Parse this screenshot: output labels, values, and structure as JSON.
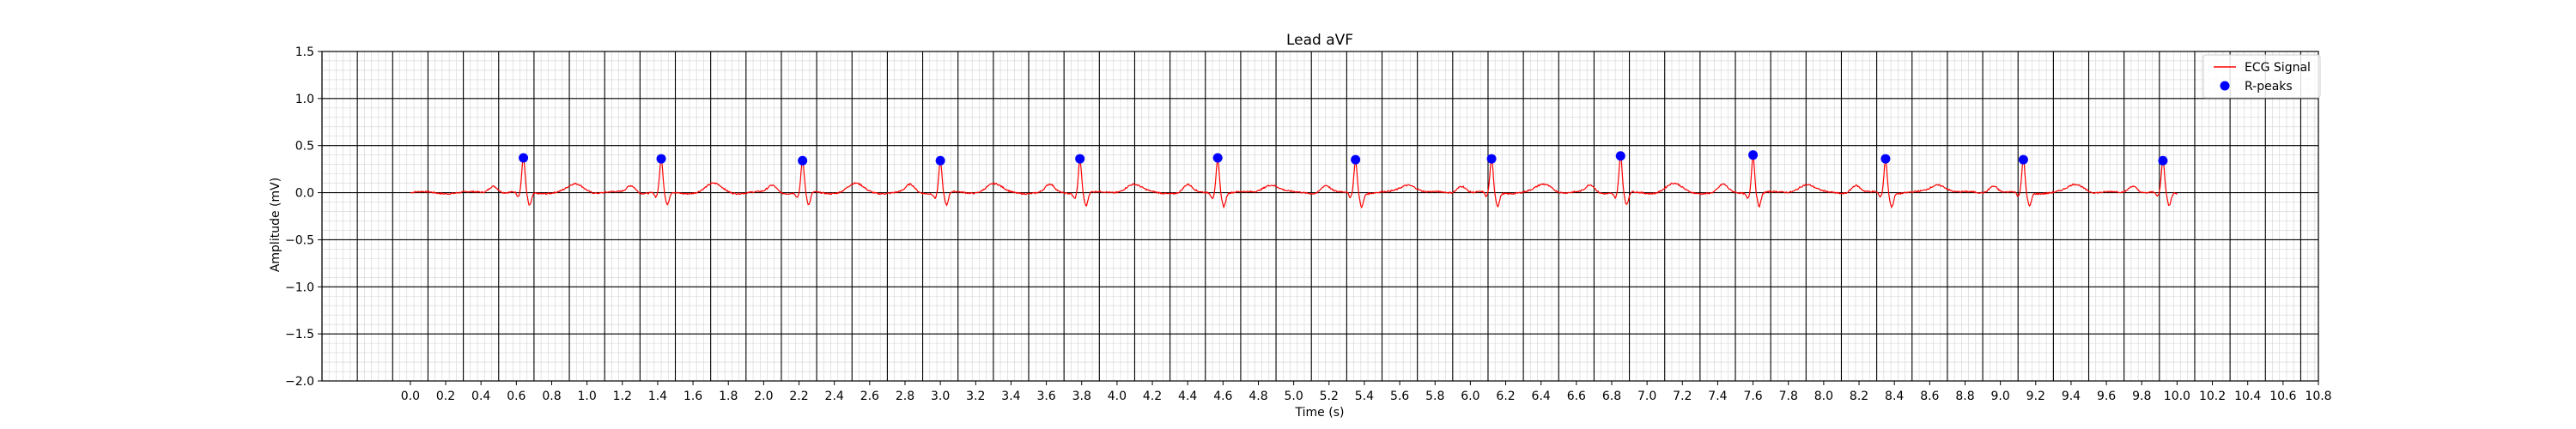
{
  "chart_data": {
    "type": "line",
    "title": "Lead aVF",
    "xlabel": "Time (s)",
    "ylabel": "Amplitude (mV)",
    "xlim": [
      -0.5,
      10.8
    ],
    "ylim": [
      -2.0,
      1.5
    ],
    "x_ticks": [
      "0.0",
      "0.2",
      "0.4",
      "0.6",
      "0.8",
      "1.0",
      "1.2",
      "1.4",
      "1.6",
      "1.8",
      "2.0",
      "2.2",
      "2.4",
      "2.6",
      "2.8",
      "3.0",
      "3.2",
      "3.4",
      "3.6",
      "3.8",
      "4.0",
      "4.2",
      "4.4",
      "4.6",
      "4.8",
      "5.0",
      "5.2",
      "5.4",
      "5.6",
      "5.8",
      "6.0",
      "6.2",
      "6.4",
      "6.6",
      "6.8",
      "7.0",
      "7.2",
      "7.4",
      "7.6",
      "7.8",
      "8.0",
      "8.2",
      "8.4",
      "8.6",
      "8.8",
      "9.0",
      "9.2",
      "9.4",
      "9.6",
      "9.8",
      "10.0",
      "10.2",
      "10.4",
      "10.6",
      "10.8"
    ],
    "y_ticks": [
      "1.5",
      "1.0",
      "0.5",
      "0.0",
      "−0.5",
      "−1.0",
      "−1.5",
      "−2.0"
    ],
    "grid": true,
    "legend_position": "top-right",
    "series": [
      {
        "name": "ECG Signal",
        "color": "#ff0000",
        "kind": "line",
        "signal_end": 10.0,
        "beats": [
          0.64,
          1.42,
          2.22,
          3.0,
          3.79,
          4.57,
          5.35,
          6.12,
          6.85,
          7.6,
          8.35,
          9.13,
          9.92
        ]
      },
      {
        "name": "R-peaks",
        "color": "#0000ff",
        "kind": "scatter",
        "x": [
          0.64,
          1.42,
          2.22,
          3.0,
          3.79,
          4.57,
          5.35,
          6.12,
          6.85,
          7.6,
          8.35,
          9.13,
          9.92
        ],
        "y": [
          0.37,
          0.36,
          0.34,
          0.34,
          0.36,
          0.37,
          0.35,
          0.36,
          0.39,
          0.4,
          0.36,
          0.35,
          0.34
        ]
      }
    ]
  }
}
